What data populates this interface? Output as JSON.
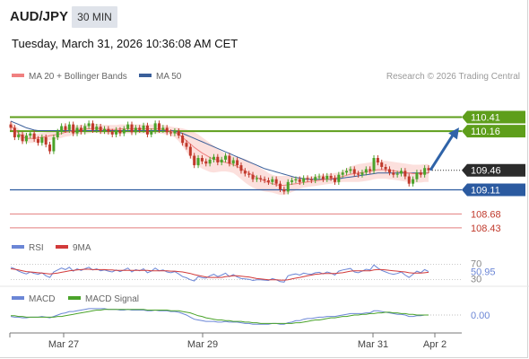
{
  "header": {
    "symbol": "AUD/JPY",
    "timeframe": "30 MIN",
    "datetime": "Tuesday, March 31, 2026 10:36:08 AM CET"
  },
  "legend": {
    "ma20": "MA 20 + Bollinger Bands",
    "ma50": "MA 50",
    "credit": "Research © 2026 Trading Central"
  },
  "colors": {
    "resistance": "#5e9e1b",
    "support_key": "#2b5aa0",
    "support_minor": "#e07070",
    "current": "#2b2b2b",
    "arrow": "#2f63a8",
    "ma20": "#f08080",
    "ma50": "#3a5f9a",
    "bull": "#4aa32a",
    "bear": "#c0392b",
    "rsi": "#6b86d6",
    "rsi_ma": "#d23a3a",
    "macd": "#6b86d6",
    "macd_signal": "#4aa32a"
  },
  "price_levels": [
    {
      "value": "110.41",
      "kind": "resistance"
    },
    {
      "value": "110.16",
      "kind": "resistance"
    },
    {
      "value": "109.46",
      "kind": "current"
    },
    {
      "value": "109.11",
      "kind": "support_key"
    },
    {
      "value": "108.68",
      "kind": "support_minor"
    },
    {
      "value": "108.43",
      "kind": "support_minor"
    }
  ],
  "rsi_panel": {
    "label": "RSI",
    "ma_label": "9MA",
    "upper": "70",
    "lower": "30",
    "value": "50.95"
  },
  "macd_panel": {
    "label": "MACD",
    "signal_label": "MACD Signal",
    "value": "0.00"
  },
  "chart_data": {
    "type": "candlestick",
    "x_labels": [
      "Mar 27",
      "Mar 29",
      "Mar 31",
      "Apr 2"
    ],
    "y_range": [
      108.3,
      110.9
    ],
    "closes": [
      110.22,
      110.05,
      110.1,
      109.98,
      110.08,
      110.12,
      110.02,
      109.95,
      110.05,
      109.92,
      109.8,
      110.05,
      110.15,
      110.25,
      110.18,
      110.28,
      110.12,
      110.22,
      110.15,
      110.25,
      110.3,
      110.18,
      110.24,
      110.16,
      110.2,
      110.15,
      110.1,
      110.18,
      110.12,
      110.2,
      110.28,
      110.14,
      110.22,
      110.18,
      110.26,
      110.1,
      110.16,
      110.3,
      110.18,
      110.22,
      110.14,
      110.12,
      110.16,
      110.08,
      109.95,
      109.88,
      109.72,
      109.55,
      109.68,
      109.62,
      109.58,
      109.65,
      109.7,
      109.6,
      109.65,
      109.72,
      109.58,
      109.64,
      109.55,
      109.45,
      109.4,
      109.38,
      109.3,
      109.32,
      109.3,
      109.28,
      109.25,
      109.3,
      109.22,
      109.12,
      109.08,
      109.25,
      109.28,
      109.3,
      109.25,
      109.32,
      109.3,
      109.28,
      109.34,
      109.35,
      109.3,
      109.36,
      109.32,
      109.25,
      109.38,
      109.42,
      109.45,
      109.48,
      109.4,
      109.38,
      109.42,
      109.48,
      109.45,
      109.68,
      109.6,
      109.52,
      109.48,
      109.42,
      109.38,
      109.4,
      109.45,
      109.35,
      109.22,
      109.3,
      109.42,
      109.38,
      109.5,
      109.46
    ],
    "ma50": [
      110.34,
      110.31,
      110.28,
      110.25,
      110.22,
      110.2,
      110.18,
      110.17,
      110.17,
      110.17,
      110.17,
      110.17,
      110.17,
      110.17,
      110.17,
      110.17,
      110.17,
      110.17,
      110.17,
      110.17,
      110.17,
      110.17,
      110.17,
      110.17,
      110.17,
      110.17,
      110.17,
      110.17,
      110.17,
      110.17,
      110.17,
      110.17,
      110.17,
      110.17,
      110.17,
      110.17,
      110.17,
      110.17,
      110.17,
      110.17,
      110.17,
      110.17,
      110.16,
      110.14,
      110.12,
      110.09,
      110.06,
      110.03,
      110.0,
      109.97,
      109.94,
      109.91,
      109.88,
      109.85,
      109.82,
      109.79,
      109.76,
      109.73,
      109.7,
      109.67,
      109.64,
      109.61,
      109.58,
      109.55,
      109.52,
      109.49,
      109.47,
      109.45,
      109.43,
      109.41,
      109.39,
      109.37,
      109.35,
      109.33,
      109.32,
      109.31,
      109.3,
      109.3,
      109.3,
      109.3,
      109.3,
      109.3,
      109.3,
      109.31,
      109.31,
      109.32,
      109.33,
      109.34,
      109.35,
      109.36,
      109.37,
      109.38,
      109.39,
      109.4,
      109.41,
      109.41,
      109.41,
      109.41,
      109.41,
      109.41,
      109.41,
      109.41,
      109.41,
      109.41,
      109.41,
      109.41,
      109.41,
      109.41
    ],
    "ma20": [
      110.26,
      110.19,
      110.12,
      110.06,
      110.03,
      110.03,
      110.03,
      110.04,
      110.05,
      110.06,
      110.08,
      110.09,
      110.1,
      110.12,
      110.14,
      110.15,
      110.17,
      110.18,
      110.19,
      110.2,
      110.2,
      110.21,
      110.21,
      110.2,
      110.19,
      110.19,
      110.19,
      110.19,
      110.2,
      110.2,
      110.2,
      110.2,
      110.2,
      110.2,
      110.2,
      110.2,
      110.2,
      110.2,
      110.2,
      110.19,
      110.18,
      110.16,
      110.14,
      110.1,
      110.05,
      109.99,
      109.93,
      109.87,
      109.82,
      109.77,
      109.73,
      109.69,
      109.66,
      109.64,
      109.62,
      109.6,
      109.58,
      109.56,
      109.53,
      109.49,
      109.45,
      109.41,
      109.37,
      109.33,
      109.3,
      109.27,
      109.24,
      109.22,
      109.2,
      109.19,
      109.19,
      109.2,
      109.21,
      109.22,
      109.23,
      109.24,
      109.25,
      109.26,
      109.27,
      109.28,
      109.29,
      109.3,
      109.31,
      109.32,
      109.33,
      109.35,
      109.37,
      109.39,
      109.4,
      109.41,
      109.42,
      109.43,
      109.44,
      109.46,
      109.47,
      109.47,
      109.47,
      109.46,
      109.45,
      109.44,
      109.43,
      109.42,
      109.41,
      109.4,
      109.4,
      109.4,
      109.41,
      109.41
    ],
    "bb_width": [
      0.08,
      0.08,
      0.08,
      0.08,
      0.08,
      0.08,
      0.08,
      0.08,
      0.08,
      0.08,
      0.08,
      0.08,
      0.08,
      0.08,
      0.08,
      0.08,
      0.08,
      0.08,
      0.08,
      0.08,
      0.08,
      0.08,
      0.08,
      0.08,
      0.08,
      0.08,
      0.08,
      0.08,
      0.08,
      0.08,
      0.08,
      0.08,
      0.08,
      0.08,
      0.08,
      0.08,
      0.08,
      0.08,
      0.08,
      0.08,
      0.08,
      0.08,
      0.09,
      0.12,
      0.16,
      0.2,
      0.24,
      0.27,
      0.28,
      0.28,
      0.27,
      0.26,
      0.24,
      0.21,
      0.18,
      0.16,
      0.15,
      0.15,
      0.17,
      0.19,
      0.21,
      0.22,
      0.22,
      0.21,
      0.2,
      0.19,
      0.17,
      0.16,
      0.16,
      0.17,
      0.17,
      0.16,
      0.14,
      0.12,
      0.1,
      0.09,
      0.09,
      0.09,
      0.09,
      0.09,
      0.09,
      0.09,
      0.09,
      0.09,
      0.09,
      0.1,
      0.12,
      0.14,
      0.15,
      0.16,
      0.16,
      0.16,
      0.16,
      0.16,
      0.16,
      0.16,
      0.16,
      0.16,
      0.16,
      0.16,
      0.16,
      0.16,
      0.16,
      0.16,
      0.16,
      0.16,
      0.16,
      0.16
    ],
    "forecast_target": 110.16,
    "rsi": [
      62,
      58,
      52,
      48,
      45,
      50,
      46,
      44,
      48,
      40,
      36,
      50,
      55,
      60,
      56,
      62,
      52,
      58,
      54,
      58,
      62,
      55,
      58,
      53,
      55,
      52,
      50,
      55,
      51,
      55,
      60,
      50,
      56,
      53,
      58,
      48,
      52,
      60,
      53,
      55,
      50,
      48,
      51,
      45,
      38,
      35,
      30,
      27,
      38,
      35,
      34,
      40,
      44,
      38,
      42,
      47,
      38,
      43,
      37,
      33,
      32,
      31,
      28,
      30,
      30,
      29,
      28,
      33,
      30,
      25,
      24,
      40,
      43,
      45,
      42,
      47,
      45,
      44,
      48,
      49,
      45,
      50,
      47,
      42,
      52,
      55,
      57,
      59,
      50,
      48,
      52,
      57,
      55,
      68,
      60,
      54,
      50,
      46,
      44,
      46,
      50,
      42,
      36,
      44,
      52,
      48,
      56,
      51
    ],
    "rsi_ma": [
      58,
      57,
      55,
      53,
      51,
      50,
      49,
      48,
      47,
      46,
      45,
      46,
      47,
      49,
      51,
      53,
      54,
      55,
      56,
      57,
      57,
      56,
      56,
      56,
      56,
      55,
      55,
      54,
      54,
      54,
      54,
      54,
      54,
      54,
      54,
      54,
      53,
      53,
      53,
      53,
      53,
      52,
      52,
      51,
      50,
      48,
      46,
      43,
      41,
      39,
      37,
      36,
      36,
      36,
      36,
      38,
      39,
      40,
      40,
      39,
      38,
      37,
      35,
      33,
      32,
      31,
      30,
      30,
      30,
      29,
      29,
      30,
      32,
      34,
      36,
      38,
      40,
      42,
      44,
      45,
      46,
      46,
      46,
      46,
      47,
      48,
      50,
      52,
      53,
      53,
      53,
      53,
      53,
      55,
      56,
      56,
      55,
      54,
      53,
      52,
      51,
      50,
      48,
      47,
      47,
      47,
      48,
      49
    ],
    "macd": [
      -0.02,
      -0.03,
      -0.03,
      -0.04,
      -0.04,
      -0.03,
      -0.03,
      -0.03,
      -0.02,
      -0.03,
      -0.04,
      -0.02,
      0.0,
      0.02,
      0.03,
      0.05,
      0.05,
      0.06,
      0.07,
      0.08,
      0.09,
      0.09,
      0.09,
      0.09,
      0.09,
      0.08,
      0.08,
      0.08,
      0.07,
      0.07,
      0.08,
      0.07,
      0.07,
      0.07,
      0.07,
      0.06,
      0.06,
      0.07,
      0.06,
      0.06,
      0.06,
      0.05,
      0.05,
      0.04,
      0.02,
      0.0,
      -0.03,
      -0.06,
      -0.07,
      -0.08,
      -0.09,
      -0.09,
      -0.09,
      -0.1,
      -0.1,
      -0.09,
      -0.1,
      -0.1,
      -0.1,
      -0.11,
      -0.12,
      -0.12,
      -0.13,
      -0.13,
      -0.13,
      -0.13,
      -0.13,
      -0.12,
      -0.12,
      -0.13,
      -0.13,
      -0.11,
      -0.1,
      -0.08,
      -0.08,
      -0.06,
      -0.05,
      -0.05,
      -0.04,
      -0.03,
      -0.03,
      -0.02,
      -0.02,
      -0.02,
      -0.01,
      0.0,
      0.01,
      0.02,
      0.02,
      0.02,
      0.02,
      0.03,
      0.03,
      0.06,
      0.06,
      0.05,
      0.04,
      0.03,
      0.02,
      0.01,
      0.01,
      0.0,
      -0.02,
      -0.02,
      -0.01,
      -0.01,
      0.0,
      0.0
    ],
    "macd_signal": [
      -0.01,
      -0.01,
      -0.02,
      -0.02,
      -0.03,
      -0.03,
      -0.03,
      -0.03,
      -0.03,
      -0.03,
      -0.03,
      -0.03,
      -0.02,
      -0.02,
      -0.01,
      0.0,
      0.01,
      0.02,
      0.03,
      0.04,
      0.05,
      0.06,
      0.07,
      0.07,
      0.08,
      0.08,
      0.08,
      0.08,
      0.08,
      0.08,
      0.08,
      0.08,
      0.08,
      0.08,
      0.08,
      0.07,
      0.07,
      0.07,
      0.07,
      0.07,
      0.07,
      0.06,
      0.06,
      0.06,
      0.05,
      0.04,
      0.03,
      0.01,
      -0.01,
      -0.02,
      -0.04,
      -0.05,
      -0.06,
      -0.07,
      -0.07,
      -0.08,
      -0.08,
      -0.09,
      -0.09,
      -0.09,
      -0.1,
      -0.1,
      -0.11,
      -0.11,
      -0.12,
      -0.12,
      -0.12,
      -0.12,
      -0.12,
      -0.12,
      -0.12,
      -0.12,
      -0.12,
      -0.11,
      -0.11,
      -0.1,
      -0.09,
      -0.08,
      -0.07,
      -0.07,
      -0.06,
      -0.05,
      -0.04,
      -0.04,
      -0.03,
      -0.02,
      -0.02,
      -0.01,
      0.0,
      0.0,
      0.01,
      0.01,
      0.02,
      0.02,
      0.03,
      0.03,
      0.04,
      0.04,
      0.03,
      0.03,
      0.02,
      0.02,
      0.01,
      0.01,
      0.0,
      0.0,
      0.0,
      0.0
    ]
  }
}
